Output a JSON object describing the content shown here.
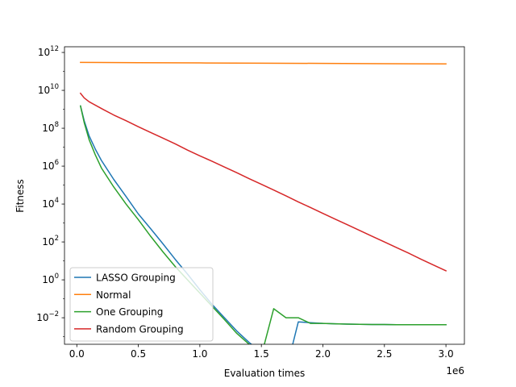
{
  "chart_data": {
    "type": "line",
    "title": "",
    "xlabel": "Evaluation times",
    "ylabel": "Fitness",
    "x_offset_text": "1e6",
    "xlim": [
      -100000,
      3150000
    ],
    "ylim_log10": [
      -3.4,
      12.3
    ],
    "yscale": "log",
    "grid": false,
    "legend_position": "lower-left",
    "x_ticks": [
      {
        "value": 0,
        "label": "0.0"
      },
      {
        "value": 500000,
        "label": "0.5"
      },
      {
        "value": 1000000,
        "label": "1.0"
      },
      {
        "value": 1500000,
        "label": "1.5"
      },
      {
        "value": 2000000,
        "label": "2.0"
      },
      {
        "value": 2500000,
        "label": "2.5"
      },
      {
        "value": 3000000,
        "label": "3.0"
      }
    ],
    "y_ticks": [
      {
        "exp": -2,
        "base": "10",
        "power": "−2"
      },
      {
        "exp": 0,
        "base": "10",
        "power": "0"
      },
      {
        "exp": 2,
        "base": "10",
        "power": "2"
      },
      {
        "exp": 4,
        "base": "10",
        "power": "4"
      },
      {
        "exp": 6,
        "base": "10",
        "power": "6"
      },
      {
        "exp": 8,
        "base": "10",
        "power": "8"
      },
      {
        "exp": 10,
        "base": "10",
        "power": "10"
      },
      {
        "exp": 12,
        "base": "10",
        "power": "12"
      }
    ],
    "series": [
      {
        "name": "LASSO Grouping",
        "color": "#1f77b4",
        "x": [
          30000,
          60000,
          100000,
          150000,
          200000,
          300000,
          400000,
          500000,
          600000,
          700000,
          800000,
          900000,
          1000000,
          1100000,
          1200000,
          1300000,
          1400000,
          1500000,
          1600000,
          1700000,
          1800000,
          1900000,
          2000000,
          2100000,
          2200000,
          2300000,
          2400000,
          2500000,
          2600000,
          2700000,
          2800000,
          2900000,
          3000000
        ],
        "y": [
          1500000000.0,
          250000000.0,
          40000000.0,
          8000000.0,
          2000000.0,
          200000.0,
          25000.0,
          3000.0,
          500.0,
          80,
          12,
          2,
          0.3,
          0.05,
          0.01,
          0.002,
          0.0005,
          0.00015,
          5e-05,
          1.5e-05,
          0.006,
          0.0055,
          0.005,
          0.0048,
          0.0046,
          0.0045,
          0.0044,
          0.0044,
          0.0043,
          0.0043,
          0.0043,
          0.0043,
          0.0043
        ]
      },
      {
        "name": "Normal",
        "color": "#ff7f0e",
        "x": [
          30000,
          500000,
          1000000,
          1500000,
          2000000,
          2500000,
          3000000
        ],
        "y": [
          300000000000.0,
          290000000000.0,
          280000000000.0,
          270000000000.0,
          265000000000.0,
          255000000000.0,
          250000000000.0
        ]
      },
      {
        "name": "One Grouping",
        "color": "#2ca02c",
        "x": [
          30000,
          60000,
          100000,
          150000,
          200000,
          300000,
          400000,
          500000,
          600000,
          700000,
          800000,
          900000,
          1000000,
          1100000,
          1200000,
          1300000,
          1400000,
          1500000,
          1600000,
          1700000,
          1800000,
          1900000,
          2000000,
          2100000,
          2200000,
          2300000,
          2400000,
          2500000,
          2600000,
          2700000,
          2800000,
          2900000,
          3000000
        ],
        "y": [
          1500000000.0,
          200000000.0,
          25000000.0,
          4000000.0,
          800000.0,
          80000.0,
          10000.0,
          1500.0,
          200.0,
          30,
          5,
          1,
          0.2,
          0.04,
          0.008,
          0.0015,
          0.0004,
          0.0001,
          0.03,
          0.01,
          0.01,
          0.005,
          0.005,
          0.0048,
          0.0046,
          0.0045,
          0.0044,
          0.0044,
          0.0043,
          0.0043,
          0.0043,
          0.0043,
          0.0043
        ]
      },
      {
        "name": "Random Grouping",
        "color": "#d62728",
        "x": [
          30000,
          60000,
          100000,
          200000,
          300000,
          400000,
          500000,
          600000,
          700000,
          800000,
          900000,
          1000000,
          1100000,
          1200000,
          1300000,
          1400000,
          1500000,
          1600000,
          1700000,
          1800000,
          1900000,
          2000000,
          2100000,
          2200000,
          2300000,
          2400000,
          2500000,
          2600000,
          2700000,
          2800000,
          2900000,
          3000000
        ],
        "y": [
          7000000000.0,
          4000000000.0,
          2500000000.0,
          1100000000.0,
          500000000.0,
          250000000.0,
          120000000.0,
          60000000.0,
          30000000.0,
          15000000.0,
          7000000.0,
          3500000.0,
          1800000.0,
          900000.0,
          450000.0,
          220000.0,
          110000.0,
          55000.0,
          27000.0,
          13000.0,
          6500.0,
          3200.0,
          1600.0,
          800,
          400,
          200,
          100,
          50,
          25,
          12,
          6,
          3
        ]
      }
    ]
  }
}
